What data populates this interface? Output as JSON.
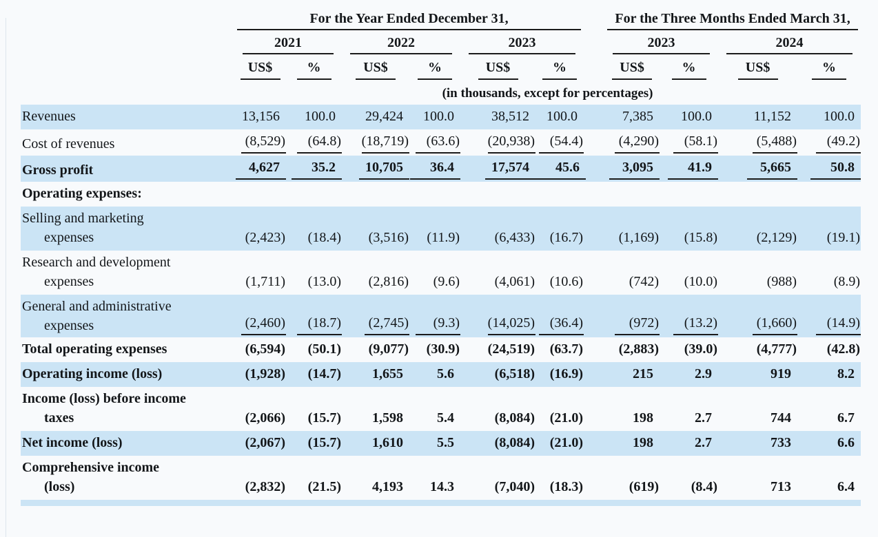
{
  "page": {
    "background_color": "#f8fafc",
    "shaded_row_color": "#cbe4f5",
    "text_color": "#131619",
    "rule_color": "#1b1b1b"
  },
  "table": {
    "groups": [
      {
        "label": "For the Year Ended December 31,",
        "years": [
          "2021",
          "2022",
          "2023"
        ]
      },
      {
        "label": "For the Three Months Ended March 31,",
        "years": [
          "2023",
          "2024"
        ]
      }
    ],
    "unit_headers": {
      "currency": "US$",
      "percent": "%"
    },
    "note": "(in thousands, except for percentages)",
    "rows": [
      {
        "name": "revenues",
        "lines": [
          "Revenues"
        ],
        "bold": false,
        "shaded": true,
        "underline_below": false,
        "values": [
          "13,156",
          "100.0",
          "29,424",
          "100.0",
          "38,512",
          "100.0",
          "7,385",
          "100.0",
          "11,152",
          "100.0"
        ]
      },
      {
        "name": "cost-of-revenues",
        "lines": [
          "Cost of revenues"
        ],
        "bold": false,
        "shaded": false,
        "underline_below": true,
        "values": [
          "(8,529)",
          "(64.8)",
          "(18,719)",
          "(63.6)",
          "(20,938)",
          "(54.4)",
          "(4,290)",
          "(58.1)",
          "(5,488)",
          "(49.2)"
        ]
      },
      {
        "name": "gross-profit",
        "lines": [
          "Gross profit"
        ],
        "bold": true,
        "shaded": true,
        "underline_below": true,
        "values": [
          "4,627",
          "35.2",
          "10,705",
          "36.4",
          "17,574",
          "45.6",
          "3,095",
          "41.9",
          "5,665",
          "50.8"
        ]
      },
      {
        "name": "operating-expenses-header",
        "lines": [
          "Operating expenses:"
        ],
        "bold": true,
        "shaded": false,
        "underline_below": false,
        "values": [
          "",
          "",
          "",
          "",
          "",
          "",
          "",
          "",
          "",
          ""
        ]
      },
      {
        "name": "selling-and-marketing-expenses",
        "lines": [
          "Selling and marketing",
          "expenses"
        ],
        "bold": false,
        "shaded": true,
        "underline_below": false,
        "values": [
          "(2,423)",
          "(18.4)",
          "(3,516)",
          "(11.9)",
          "(6,433)",
          "(16.7)",
          "(1,169)",
          "(15.8)",
          "(2,129)",
          "(19.1)"
        ]
      },
      {
        "name": "research-and-development-expenses",
        "lines": [
          "Research and development",
          "expenses"
        ],
        "bold": false,
        "shaded": false,
        "underline_below": false,
        "values": [
          "(1,711)",
          "(13.0)",
          "(2,816)",
          "(9.6)",
          "(4,061)",
          "(10.6)",
          "(742)",
          "(10.0)",
          "(988)",
          "(8.9)"
        ]
      },
      {
        "name": "general-and-administrative-expenses",
        "lines": [
          "General and administrative",
          "expenses"
        ],
        "bold": false,
        "shaded": true,
        "underline_below": true,
        "values": [
          "(2,460)",
          "(18.7)",
          "(2,745)",
          "(9.3)",
          "(14,025)",
          "(36.4)",
          "(972)",
          "(13.2)",
          "(1,660)",
          "(14.9)"
        ]
      },
      {
        "name": "total-operating-expenses",
        "lines": [
          "Total operating expenses"
        ],
        "bold": true,
        "shaded": false,
        "underline_below": false,
        "values": [
          "(6,594)",
          "(50.1)",
          "(9,077)",
          "(30.9)",
          "(24,519)",
          "(63.7)",
          "(2,883)",
          "(39.0)",
          "(4,777)",
          "(42.8)"
        ]
      },
      {
        "name": "operating-income-loss",
        "lines": [
          "Operating income (loss)"
        ],
        "bold": true,
        "shaded": true,
        "underline_below": false,
        "values": [
          "(1,928)",
          "(14.7)",
          "1,655",
          "5.6",
          "(6,518)",
          "(16.9)",
          "215",
          "2.9",
          "919",
          "8.2"
        ]
      },
      {
        "name": "income-loss-before-income-taxes",
        "lines": [
          "Income (loss) before income",
          "taxes"
        ],
        "bold": true,
        "shaded": false,
        "underline_below": false,
        "values": [
          "(2,066)",
          "(15.7)",
          "1,598",
          "5.4",
          "(8,084)",
          "(21.0)",
          "198",
          "2.7",
          "744",
          "6.7"
        ]
      },
      {
        "name": "net-income-loss",
        "lines": [
          "Net income (loss)"
        ],
        "bold": true,
        "shaded": true,
        "underline_below": false,
        "values": [
          "(2,067)",
          "(15.7)",
          "1,610",
          "5.5",
          "(8,084)",
          "(21.0)",
          "198",
          "2.7",
          "733",
          "6.6"
        ]
      },
      {
        "name": "comprehensive-income-loss",
        "lines": [
          "Comprehensive income",
          "(loss)"
        ],
        "bold": true,
        "shaded": false,
        "underline_below": false,
        "values": [
          "(2,832)",
          "(21.5)",
          "4,193",
          "14.3",
          "(7,040)",
          "(18.3)",
          "(619)",
          "(8.4)",
          "713",
          "6.4"
        ]
      }
    ]
  }
}
